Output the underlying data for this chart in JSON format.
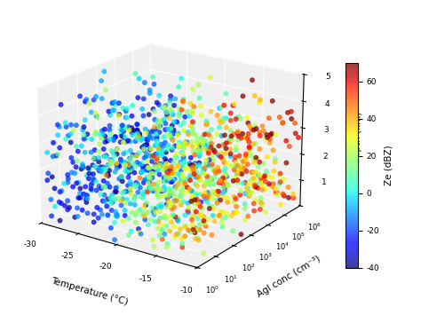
{
  "n_points": 1200,
  "temp_range": [
    -30,
    -10
  ],
  "agi_range_log": [
    0,
    6
  ],
  "depth_range": [
    0,
    5
  ],
  "ze_range": [
    -40,
    70
  ],
  "colormap": "jet",
  "xlabel": "Temperature (°C)",
  "ylabel": "AgI conc (cm⁻³)",
  "zlabel": "Depth (km)",
  "clabel": "Ze (dBZ)",
  "xticks": [
    -30,
    -25,
    -20,
    -15,
    -10
  ],
  "yticks_log": [
    0,
    1,
    2,
    3,
    4,
    5,
    6
  ],
  "zticks": [
    1,
    2,
    3,
    4,
    5
  ],
  "clim": [
    -40,
    70
  ],
  "cticks": [
    -40,
    -20,
    0,
    20,
    40,
    60
  ],
  "point_size": 18,
  "alpha": 0.75,
  "background_color": "#f0f0f0",
  "pane_color": [
    0.94,
    0.94,
    0.94,
    1.0
  ],
  "grid_color": "white",
  "seed": 42
}
